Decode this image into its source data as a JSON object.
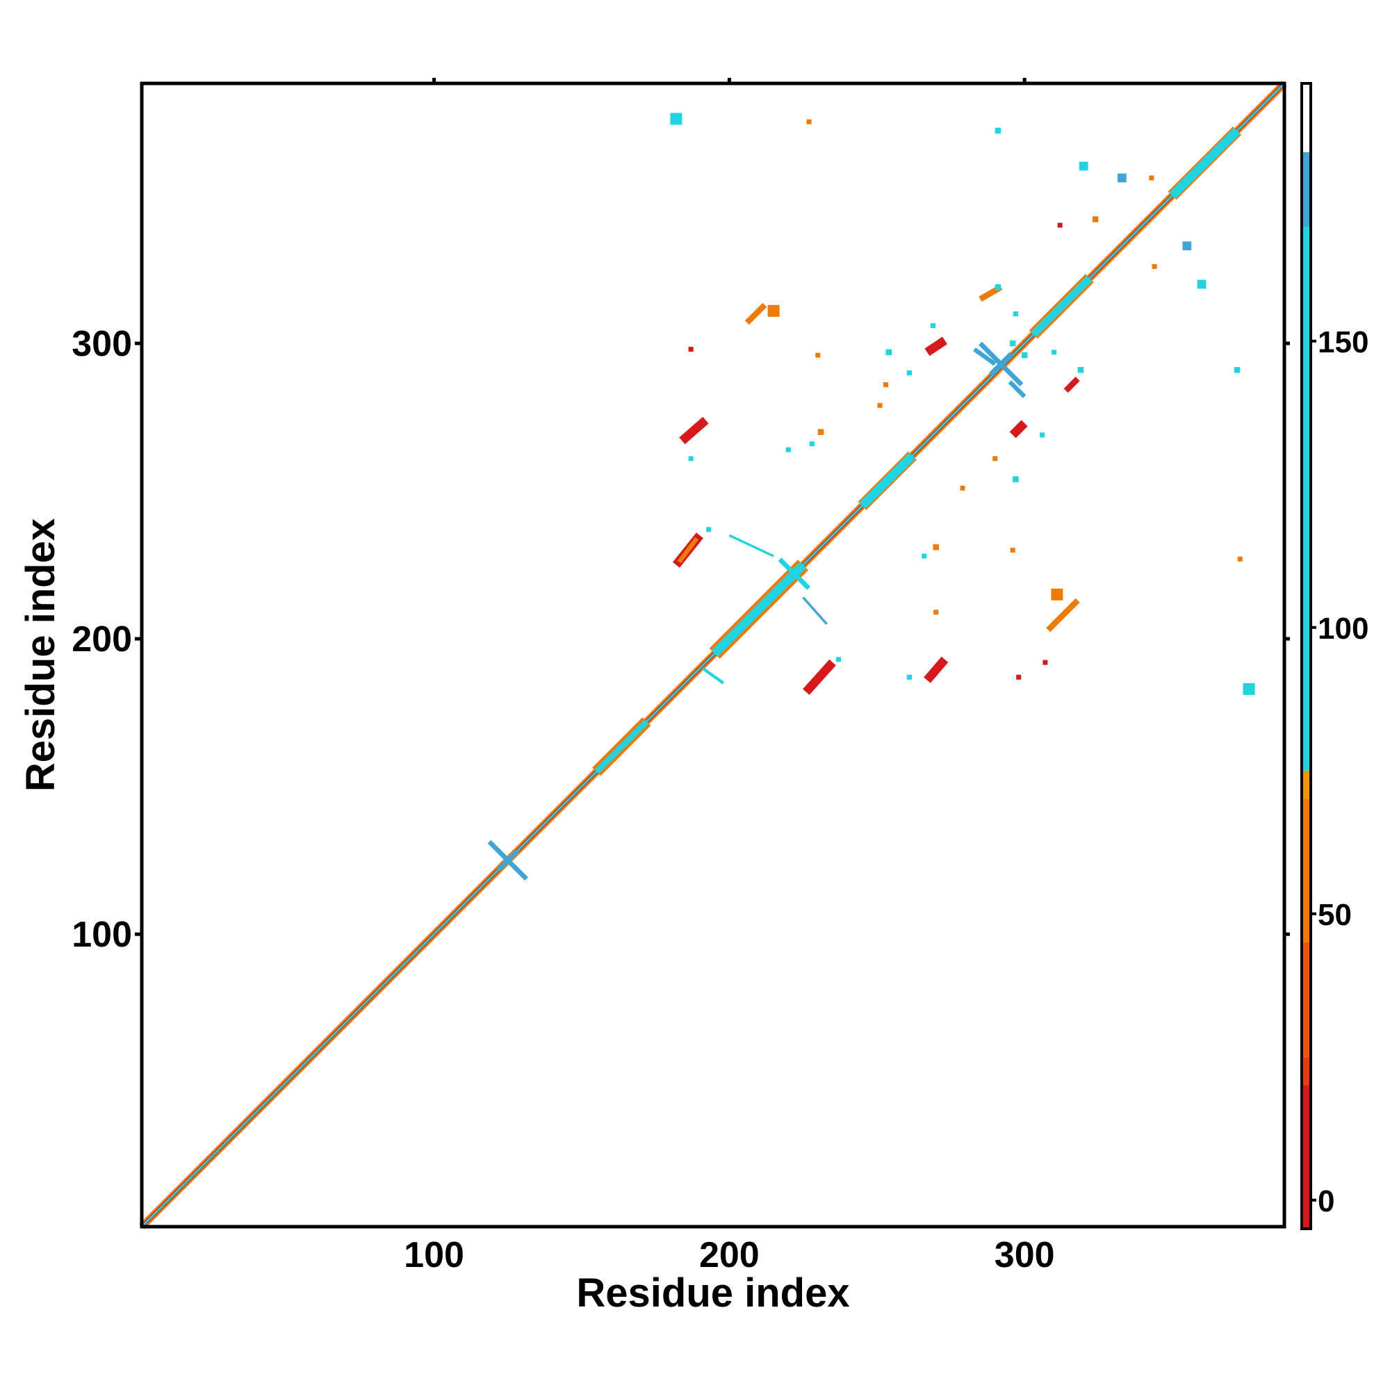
{
  "chart_data": {
    "type": "heatmap",
    "title": "",
    "xlabel": "Residue index",
    "ylabel": "Residue index",
    "xlim": [
      1,
      388
    ],
    "ylim": [
      1,
      388
    ],
    "x_ticks": [
      100,
      200,
      300
    ],
    "y_ticks": [
      100,
      200,
      300
    ],
    "grid": false,
    "colorbar": {
      "ticks": [
        0,
        50,
        100,
        150
      ],
      "range": [
        -5,
        195
      ],
      "bins": [
        {
          "from": -5,
          "to": 20,
          "color": "#d7191c"
        },
        {
          "from": 20,
          "to": 25,
          "color": "#e63a10"
        },
        {
          "from": 25,
          "to": 45,
          "color": "#e8550a"
        },
        {
          "from": 45,
          "to": 70,
          "color": "#f07a06"
        },
        {
          "from": 70,
          "to": 75,
          "color": "#f59600"
        },
        {
          "from": 75,
          "to": 170,
          "color": "#1fd4e0"
        },
        {
          "from": 170,
          "to": 183,
          "color": "#3ea5d6"
        },
        {
          "from": 183,
          "to": 195,
          "color": "#ffffff"
        }
      ]
    },
    "contacts": [
      {
        "kind": "band",
        "x": [
          1,
          388
        ],
        "width": 2.5,
        "color": "#f07a06"
      },
      {
        "kind": "band",
        "x": [
          1,
          388
        ],
        "width": 1.2,
        "color": "#d7191c"
      },
      {
        "kind": "band",
        "x": [
          110,
          125
        ],
        "width": 1,
        "color": "#d7191c"
      },
      {
        "kind": "band",
        "x": [
          150,
          160
        ],
        "width": 1,
        "color": "#d7191c"
      },
      {
        "kind": "band",
        "x": [
          182,
          192
        ],
        "width": 1,
        "color": "#d7191c"
      },
      {
        "kind": "band",
        "x": [
          236,
          244
        ],
        "width": 1,
        "color": "#d7191c"
      },
      {
        "kind": "band",
        "x": [
          268,
          276
        ],
        "width": 1,
        "color": "#d7191c"
      },
      {
        "kind": "band",
        "x": [
          1,
          388
        ],
        "width": 0.6,
        "color": "#1fd4e0"
      },
      {
        "kind": "band",
        "x": [
          155,
          172
        ],
        "width": 4,
        "color": "#f07a06"
      },
      {
        "kind": "band",
        "x": [
          195,
          225
        ],
        "width": 5,
        "color": "#f07a06"
      },
      {
        "kind": "band",
        "x": [
          245,
          262
        ],
        "width": 4,
        "color": "#f07a06"
      },
      {
        "kind": "band",
        "x": [
          303,
          322
        ],
        "width": 4,
        "color": "#f07a06"
      },
      {
        "kind": "band",
        "x": [
          350,
          372
        ],
        "width": 4,
        "color": "#f07a06"
      },
      {
        "kind": "band",
        "x": [
          195,
          225
        ],
        "width": 3,
        "color": "#1fd4e0"
      },
      {
        "kind": "band",
        "x": [
          245,
          262
        ],
        "width": 3,
        "color": "#1fd4e0"
      },
      {
        "kind": "band",
        "x": [
          303,
          322
        ],
        "width": 2.5,
        "color": "#1fd4e0"
      },
      {
        "kind": "band",
        "x": [
          350,
          372
        ],
        "width": 3,
        "color": "#1fd4e0"
      },
      {
        "kind": "band",
        "x": [
          155,
          172
        ],
        "width": 2,
        "color": "#1fd4e0"
      },
      {
        "kind": "cross",
        "x": 125,
        "y": 125,
        "len": 9,
        "color": "#3ea5d6"
      },
      {
        "kind": "cross",
        "x": 292,
        "y": 293,
        "len": 10,
        "color": "#3ea5d6"
      },
      {
        "kind": "cross",
        "x": 222,
        "y": 222,
        "len": 7,
        "color": "#1fd4e0"
      },
      {
        "kind": "seg",
        "x": [
          182,
          190
        ],
        "y": [
          225,
          235
        ],
        "w": 3,
        "color": "#d7191c"
      },
      {
        "kind": "seg",
        "x": [
          183,
          189
        ],
        "y": [
          226,
          234
        ],
        "w": 1.5,
        "color": "#f07a06"
      },
      {
        "kind": "seg",
        "x": [
          184,
          192
        ],
        "y": [
          267,
          274
        ],
        "w": 3,
        "color": "#d7191c"
      },
      {
        "kind": "seg",
        "x": [
          226,
          235
        ],
        "y": [
          182,
          192
        ],
        "w": 3,
        "color": "#d7191c"
      },
      {
        "kind": "seg",
        "x": [
          267,
          273
        ],
        "y": [
          186,
          193
        ],
        "w": 3,
        "color": "#d7191c"
      },
      {
        "kind": "seg",
        "x": [
          267,
          273
        ],
        "y": [
          297,
          301
        ],
        "w": 3,
        "color": "#d7191c"
      },
      {
        "kind": "seg",
        "x": [
          296,
          300
        ],
        "y": [
          269,
          273
        ],
        "w": 3,
        "color": "#d7191c"
      },
      {
        "kind": "seg",
        "x": [
          308,
          318
        ],
        "y": [
          203,
          213
        ],
        "w": 2,
        "color": "#f07a06"
      },
      {
        "kind": "seg",
        "x": [
          206,
          212
        ],
        "y": [
          307,
          313
        ],
        "w": 2,
        "color": "#f07a06"
      },
      {
        "kind": "seg",
        "x": [
          314,
          318
        ],
        "y": [
          284,
          288
        ],
        "w": 2,
        "color": "#d7191c"
      },
      {
        "kind": "seg",
        "x": [
          285,
          292
        ],
        "y": [
          315,
          319
        ],
        "w": 2,
        "color": "#f07a06"
      },
      {
        "kind": "seg",
        "x": [
          191,
          198
        ],
        "y": [
          190,
          185
        ],
        "w": 1,
        "color": "#1fd4e0"
      },
      {
        "kind": "seg",
        "x": [
          200,
          215
        ],
        "y": [
          235,
          228
        ],
        "w": 0.8,
        "color": "#1fd4e0"
      },
      {
        "kind": "seg",
        "x": [
          225,
          233
        ],
        "y": [
          214,
          205
        ],
        "w": 0.8,
        "color": "#3ea5d6"
      },
      {
        "kind": "seg",
        "x": [
          283,
          290
        ],
        "y": [
          298,
          293
        ],
        "w": 1.5,
        "color": "#3ea5d6"
      },
      {
        "kind": "seg",
        "x": [
          295,
          300
        ],
        "y": [
          287,
          282
        ],
        "w": 1.5,
        "color": "#3ea5d6"
      },
      {
        "kind": "blob",
        "x": 182,
        "y": 376,
        "r": 2,
        "color": "#1fd4e0"
      },
      {
        "kind": "blob",
        "x": 376,
        "y": 183,
        "r": 2,
        "color": "#1fd4e0"
      },
      {
        "kind": "blob",
        "x": 227,
        "y": 375,
        "r": 0.7,
        "color": "#f07a06"
      },
      {
        "kind": "blob",
        "x": 373,
        "y": 227,
        "r": 0.7,
        "color": "#f07a06"
      },
      {
        "kind": "blob",
        "x": 291,
        "y": 372,
        "r": 1,
        "color": "#1fd4e0"
      },
      {
        "kind": "blob",
        "x": 372,
        "y": 291,
        "r": 1,
        "color": "#1fd4e0"
      },
      {
        "kind": "blob",
        "x": 320,
        "y": 360,
        "r": 1.5,
        "color": "#1fd4e0"
      },
      {
        "kind": "blob",
        "x": 333,
        "y": 356,
        "r": 1.5,
        "color": "#3ea5d6"
      },
      {
        "kind": "blob",
        "x": 343,
        "y": 356,
        "r": 0.7,
        "color": "#f07a06"
      },
      {
        "kind": "blob",
        "x": 324,
        "y": 342,
        "r": 1,
        "color": "#f07a06"
      },
      {
        "kind": "blob",
        "x": 312,
        "y": 340,
        "r": 0.6,
        "color": "#d7191c"
      },
      {
        "kind": "blob",
        "x": 355,
        "y": 333,
        "r": 1.5,
        "color": "#3ea5d6"
      },
      {
        "kind": "blob",
        "x": 360,
        "y": 320,
        "r": 1.5,
        "color": "#1fd4e0"
      },
      {
        "kind": "blob",
        "x": 344,
        "y": 326,
        "r": 0.8,
        "color": "#f07a06"
      },
      {
        "kind": "blob",
        "x": 296,
        "y": 300,
        "r": 1,
        "color": "#1fd4e0"
      },
      {
        "kind": "blob",
        "x": 300,
        "y": 296,
        "r": 1,
        "color": "#1fd4e0"
      },
      {
        "kind": "blob",
        "x": 215,
        "y": 311,
        "r": 2,
        "color": "#f07a06"
      },
      {
        "kind": "blob",
        "x": 311,
        "y": 215,
        "r": 2,
        "color": "#f07a06"
      },
      {
        "kind": "blob",
        "x": 291,
        "y": 319,
        "r": 1,
        "color": "#1fd4e0"
      },
      {
        "kind": "blob",
        "x": 319,
        "y": 291,
        "r": 1,
        "color": "#1fd4e0"
      },
      {
        "kind": "blob",
        "x": 254,
        "y": 297,
        "r": 1,
        "color": "#1fd4e0"
      },
      {
        "kind": "blob",
        "x": 297,
        "y": 254,
        "r": 1,
        "color": "#1fd4e0"
      },
      {
        "kind": "blob",
        "x": 261,
        "y": 290,
        "r": 0.8,
        "color": "#1fd4e0"
      },
      {
        "kind": "blob",
        "x": 290,
        "y": 261,
        "r": 0.8,
        "color": "#f07a06"
      },
      {
        "kind": "blob",
        "x": 253,
        "y": 286,
        "r": 0.7,
        "color": "#f07a06"
      },
      {
        "kind": "blob",
        "x": 231,
        "y": 270,
        "r": 1,
        "color": "#f07a06"
      },
      {
        "kind": "blob",
        "x": 228,
        "y": 266,
        "r": 0.8,
        "color": "#1fd4e0"
      },
      {
        "kind": "blob",
        "x": 270,
        "y": 231,
        "r": 1,
        "color": "#f07a06"
      },
      {
        "kind": "blob",
        "x": 266,
        "y": 228,
        "r": 0.8,
        "color": "#1fd4e0"
      },
      {
        "kind": "blob",
        "x": 306,
        "y": 269,
        "r": 0.8,
        "color": "#1fd4e0"
      },
      {
        "kind": "blob",
        "x": 269,
        "y": 306,
        "r": 0.8,
        "color": "#1fd4e0"
      },
      {
        "kind": "blob",
        "x": 279,
        "y": 251,
        "r": 0.8,
        "color": "#f07a06"
      },
      {
        "kind": "blob",
        "x": 251,
        "y": 279,
        "r": 0.8,
        "color": "#f07a06"
      },
      {
        "kind": "blob",
        "x": 187,
        "y": 261,
        "r": 0.8,
        "color": "#1fd4e0"
      },
      {
        "kind": "blob",
        "x": 261,
        "y": 187,
        "r": 0.8,
        "color": "#1fd4e0"
      },
      {
        "kind": "blob",
        "x": 193,
        "y": 237,
        "r": 0.8,
        "color": "#1fd4e0"
      },
      {
        "kind": "blob",
        "x": 237,
        "y": 193,
        "r": 0.8,
        "color": "#1fd4e0"
      },
      {
        "kind": "blob",
        "x": 187,
        "y": 298,
        "r": 0.5,
        "color": "#d7191c"
      },
      {
        "kind": "blob",
        "x": 298,
        "y": 187,
        "r": 0.5,
        "color": "#d7191c"
      },
      {
        "kind": "blob",
        "x": 220,
        "y": 264,
        "r": 0.5,
        "color": "#1fd4e0"
      },
      {
        "kind": "blob",
        "x": 307,
        "y": 192,
        "r": 0.5,
        "color": "#d7191c"
      },
      {
        "kind": "blob",
        "x": 270,
        "y": 209,
        "r": 0.5,
        "color": "#f07a06"
      },
      {
        "kind": "blob",
        "x": 296,
        "y": 230,
        "r": 0.6,
        "color": "#f07a06"
      },
      {
        "kind": "blob",
        "x": 230,
        "y": 296,
        "r": 0.6,
        "color": "#f07a06"
      },
      {
        "kind": "blob",
        "x": 310,
        "y": 297,
        "r": 0.7,
        "color": "#1fd4e0"
      },
      {
        "kind": "blob",
        "x": 297,
        "y": 310,
        "r": 0.7,
        "color": "#1fd4e0"
      }
    ]
  }
}
